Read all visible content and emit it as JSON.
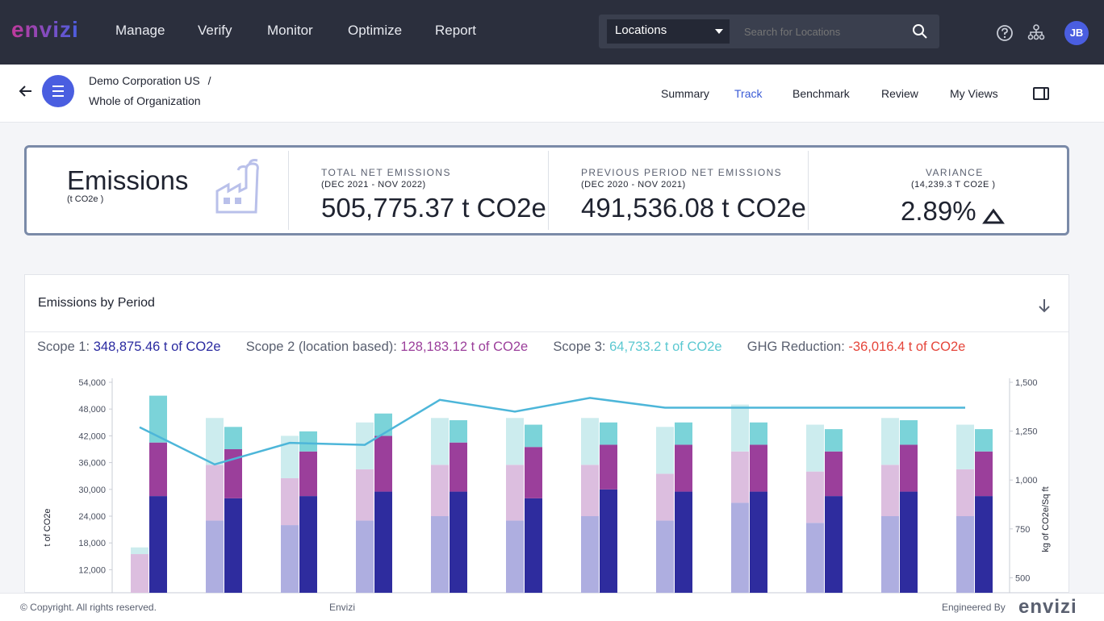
{
  "app": {
    "logo": "envizi",
    "brand_colors": {
      "logo_start": "#c0399b",
      "logo_end": "#4a5ee0",
      "accent": "#4a5ee0"
    }
  },
  "nav": {
    "items": [
      "Manage",
      "Verify",
      "Monitor",
      "Optimize",
      "Report"
    ]
  },
  "search": {
    "scope": "Locations",
    "placeholder": "Search for Locations"
  },
  "user": {
    "initials": "JB"
  },
  "breadcrumb": {
    "org": "Demo Corporation US",
    "separator": "/",
    "level": "Whole of Organization"
  },
  "tabs": [
    {
      "label": "Summary"
    },
    {
      "label": "Track",
      "active": true
    },
    {
      "label": "Benchmark"
    },
    {
      "label": "Review"
    },
    {
      "label": "My Views"
    }
  ],
  "kpi": {
    "title": "Emissions",
    "unit": "(t CO2e )",
    "total": {
      "label": "TOTAL NET EMISSIONS",
      "period": "(DEC 2021 - NOV 2022)",
      "value": "505,775.37 t CO2e"
    },
    "previous": {
      "label": "PREVIOUS PERIOD NET EMISSIONS",
      "period": "(DEC 2020 - NOV 2021)",
      "value": "491,536.08 t CO2e"
    },
    "variance": {
      "label": "VARIANCE",
      "sub": "(14,239.3 T CO2E )",
      "value": "2.89%",
      "direction": "up"
    }
  },
  "panel": {
    "title": "Emissions by Period",
    "scope1": {
      "label": "Scope 1:",
      "value": "348,875.46 t of CO2e",
      "color": "#2a2aa0"
    },
    "scope2": {
      "label": "Scope 2 (location based):",
      "value": "128,183.12 t of CO2e",
      "color": "#9b3f9b"
    },
    "scope3": {
      "label": "Scope 3:",
      "value": "64,733.2 t of CO2e",
      "color": "#5bc8d1"
    },
    "ghg": {
      "label": "GHG Reduction:",
      "value": "-36,016.4 t of CO2e",
      "color": "#e5453a"
    }
  },
  "chart_data": {
    "type": "bar",
    "stacked": true,
    "ylabel": "t of CO2e",
    "y2label": "kg of CO2e/Sq ft",
    "y_ticks": [
      "54,000",
      "48,000",
      "42,000",
      "36,000",
      "30,000",
      "24,000",
      "18,000",
      "12,000"
    ],
    "y2_ticks": [
      "1,500",
      "1,250",
      "1,000",
      "750",
      "500"
    ],
    "ylim": [
      0,
      54000
    ],
    "y2lim": [
      0,
      1500
    ],
    "series": [
      {
        "group": "previous",
        "color": "#aeaee0",
        "values": [
          0,
          23000,
          22000,
          23000,
          24000,
          23000,
          24000,
          23000,
          27000,
          22500,
          24000,
          24000
        ]
      },
      {
        "group": "previous",
        "color": "#dcbedf",
        "values": [
          15500,
          12500,
          10500,
          11500,
          11500,
          12500,
          11500,
          10500,
          11500,
          11500,
          11500,
          10500
        ]
      },
      {
        "group": "previous",
        "color": "#ccecee",
        "values": [
          1500,
          10500,
          9500,
          10500,
          10500,
          10500,
          10500,
          10500,
          10500,
          10500,
          10500,
          10000
        ]
      },
      {
        "group": "current",
        "color": "#2e2c9e",
        "values": [
          28500,
          28000,
          28500,
          29500,
          29500,
          28000,
          30000,
          29500,
          29500,
          28500,
          29500,
          28500
        ]
      },
      {
        "group": "current",
        "color": "#9b3f9b",
        "values": [
          12000,
          11000,
          10000,
          12500,
          11000,
          11500,
          10000,
          10500,
          10500,
          10000,
          10500,
          10000
        ]
      },
      {
        "group": "current",
        "color": "#7bd3d9",
        "values": [
          10500,
          5000,
          4500,
          5000,
          5000,
          5000,
          5000,
          5000,
          5000,
          5000,
          5500,
          5000
        ]
      },
      {
        "type": "line",
        "axis": "y2",
        "color": "#4db6d9",
        "values": [
          1270,
          1080,
          1190,
          1180,
          1410,
          1350,
          1420,
          1370,
          1370,
          1370,
          1370,
          1370
        ]
      }
    ]
  },
  "footer": {
    "copyright": "© Copyright. All rights reserved.",
    "company": "Envizi",
    "engineered": "Engineered By",
    "logo": "envizi"
  }
}
